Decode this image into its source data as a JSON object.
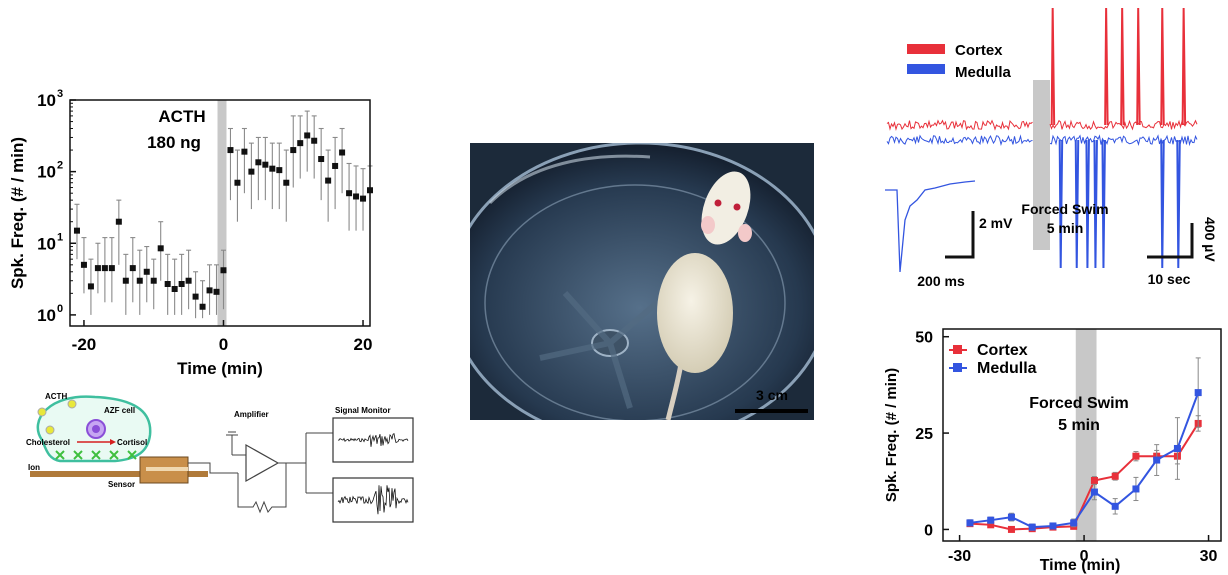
{
  "chart_data": [
    {
      "type": "scatter",
      "title": "",
      "xlabel": "Time (min)",
      "ylabel": "Spk. Freq. (# / min)",
      "yscale": "log",
      "xlim": [
        -22,
        21
      ],
      "ylim": [
        0.7,
        1000
      ],
      "x_ticks": [
        "-20",
        "0",
        "20"
      ],
      "y_ticks": [
        {
          "base": "10",
          "exp": "0"
        },
        {
          "base": "10",
          "exp": "1"
        },
        {
          "base": "10",
          "exp": "2"
        },
        {
          "base": "10",
          "exp": "3"
        }
      ],
      "annotation": [
        "ACTH",
        "180 ng"
      ],
      "shaded_interval": [
        -1,
        0
      ],
      "points": [
        {
          "x": -21,
          "y": 15,
          "lo": 6,
          "hi": 35
        },
        {
          "x": -20,
          "y": 5,
          "lo": 2,
          "hi": 12
        },
        {
          "x": -19,
          "y": 2.5,
          "lo": 1,
          "hi": 6
        },
        {
          "x": -18,
          "y": 4.5,
          "lo": 2,
          "hi": 10
        },
        {
          "x": -17,
          "y": 4.5,
          "lo": 1.5,
          "hi": 12
        },
        {
          "x": -16,
          "y": 4.5,
          "lo": 1.5,
          "hi": 12
        },
        {
          "x": -15,
          "y": 20,
          "lo": 5,
          "hi": 40
        },
        {
          "x": -14,
          "y": 3,
          "lo": 1,
          "hi": 7
        },
        {
          "x": -13,
          "y": 4.5,
          "lo": 1.5,
          "hi": 12
        },
        {
          "x": -12,
          "y": 3,
          "lo": 1,
          "hi": 8
        },
        {
          "x": -11,
          "y": 4,
          "lo": 1.5,
          "hi": 9
        },
        {
          "x": -10,
          "y": 3,
          "lo": 1.2,
          "hi": 6
        },
        {
          "x": -9,
          "y": 8.5,
          "lo": 3,
          "hi": 20
        },
        {
          "x": -8,
          "y": 2.7,
          "lo": 1,
          "hi": 7
        },
        {
          "x": -7,
          "y": 2.3,
          "lo": 1,
          "hi": 6
        },
        {
          "x": -6,
          "y": 2.7,
          "lo": 1,
          "hi": 7
        },
        {
          "x": -5,
          "y": 3,
          "lo": 1.2,
          "hi": 8
        },
        {
          "x": -4,
          "y": 1.8,
          "lo": 0.9,
          "hi": 4
        },
        {
          "x": -3,
          "y": 1.3,
          "lo": 0.9,
          "hi": 3
        },
        {
          "x": -2,
          "y": 2.2,
          "lo": 1,
          "hi": 5
        },
        {
          "x": -1,
          "y": 2.1,
          "lo": 1,
          "hi": 5
        },
        {
          "x": 0,
          "y": 4.2,
          "lo": 1.2,
          "hi": 8
        },
        {
          "x": 1,
          "y": 200,
          "lo": 40,
          "hi": 400
        },
        {
          "x": 2,
          "y": 70,
          "lo": 20,
          "hi": 200
        },
        {
          "x": 3,
          "y": 190,
          "lo": 50,
          "hi": 400
        },
        {
          "x": 4,
          "y": 100,
          "lo": 30,
          "hi": 250
        },
        {
          "x": 5,
          "y": 135,
          "lo": 40,
          "hi": 300
        },
        {
          "x": 6,
          "y": 125,
          "lo": 40,
          "hi": 300
        },
        {
          "x": 7,
          "y": 110,
          "lo": 30,
          "hi": 250
        },
        {
          "x": 8,
          "y": 105,
          "lo": 30,
          "hi": 250
        },
        {
          "x": 9,
          "y": 70,
          "lo": 20,
          "hi": 200
        },
        {
          "x": 10,
          "y": 200,
          "lo": 60,
          "hi": 600
        },
        {
          "x": 11,
          "y": 250,
          "lo": 80,
          "hi": 600
        },
        {
          "x": 12,
          "y": 320,
          "lo": 100,
          "hi": 700
        },
        {
          "x": 13,
          "y": 270,
          "lo": 80,
          "hi": 600
        },
        {
          "x": 14,
          "y": 150,
          "lo": 40,
          "hi": 400
        },
        {
          "x": 15,
          "y": 75,
          "lo": 20,
          "hi": 200
        },
        {
          "x": 16,
          "y": 120,
          "lo": 30,
          "hi": 300
        },
        {
          "x": 17,
          "y": 185,
          "lo": 50,
          "hi": 400
        },
        {
          "x": 18,
          "y": 50,
          "lo": 15,
          "hi": 130
        },
        {
          "x": 19,
          "y": 45,
          "lo": 15,
          "hi": 120
        },
        {
          "x": 20,
          "y": 42,
          "lo": 15,
          "hi": 110
        },
        {
          "x": 21,
          "y": 55,
          "lo": 20,
          "hi": 120
        }
      ]
    },
    {
      "type": "line",
      "title": "",
      "legend": [
        "Cortex",
        "Medulla"
      ],
      "colors": {
        "Cortex": "#e8303a",
        "Medulla": "#3355e0"
      },
      "shaded_label": [
        "Forced Swim",
        "5 min"
      ],
      "scale_bars": {
        "inset_voltage": "2 mV",
        "inset_time": "200 ms",
        "main_voltage": "400 µV",
        "main_time": "10 sec"
      },
      "cortex_spike_times_s": [
        1,
        21,
        27,
        33,
        42,
        50
      ],
      "medulla_spike_times_s": [
        4,
        10,
        14,
        17,
        20,
        42,
        48
      ]
    },
    {
      "type": "line",
      "title": "",
      "xlabel": "Time (min)",
      "ylabel": "Spk. Freq. (# / min)",
      "xlim": [
        -34,
        33
      ],
      "ylim": [
        -3,
        52
      ],
      "x_ticks": [
        "-30",
        "0",
        "30"
      ],
      "y_ticks": [
        "0",
        "25",
        "50"
      ],
      "annotation": [
        "Forced Swim",
        "5 min"
      ],
      "shaded_interval": [
        -2,
        3
      ],
      "colors": {
        "Cortex": "#e8303a",
        "Medulla": "#3355e0"
      },
      "series": [
        {
          "name": "Cortex",
          "x": [
            -27.5,
            -22.5,
            -17.5,
            -12.5,
            -7.5,
            -2.5,
            2.5,
            7.5,
            12.5,
            17.5,
            22.5,
            27.5
          ],
          "y": [
            1.5,
            1.2,
            0,
            0.2,
            0.6,
            0.8,
            12.7,
            13.8,
            19,
            19,
            19,
            27.5
          ],
          "err": [
            0.5,
            0.5,
            0.4,
            0.4,
            0.4,
            0.5,
            1,
            1,
            1.2,
            1.5,
            2,
            2
          ]
        },
        {
          "name": "Medulla",
          "x": [
            -27.5,
            -22.5,
            -17.5,
            -12.5,
            -7.5,
            -2.5,
            2.5,
            7.5,
            12.5,
            17.5,
            22.5,
            27.5
          ],
          "y": [
            1.7,
            2.4,
            3.2,
            0.6,
            0.9,
            1.7,
            9.7,
            6,
            10.5,
            18,
            21,
            35.5
          ],
          "err": [
            0.8,
            0.8,
            1,
            0.8,
            0.5,
            1,
            2,
            2,
            3,
            4,
            8,
            9
          ]
        }
      ]
    }
  ],
  "diagram": {
    "labels": {
      "acth": "ACTH",
      "azf": "AZF cell",
      "cholesterol": "Cholesterol",
      "cortisol": "Cortisol",
      "ion": "Ion",
      "sensor": "Sensor",
      "amplifier": "Amplifier",
      "monitor": "Signal Monitor"
    },
    "colors": {
      "cell": "#3fbf9f",
      "acth": "#e8e83a",
      "nucleus": "#8a4fd8",
      "ion": "#3fbf3f",
      "sensor": "#b07a3a"
    }
  },
  "photo": {
    "scale_label": "3 cm"
  }
}
